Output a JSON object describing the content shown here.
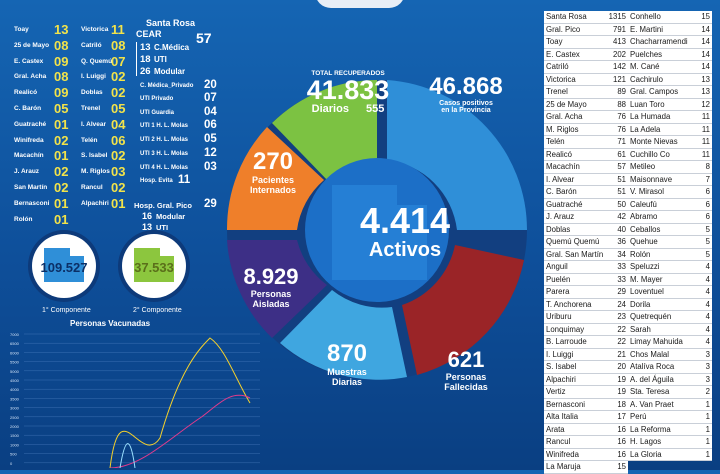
{
  "top_left_localities": [
    {
      "name": "Toay",
      "value": "13"
    },
    {
      "name": "25 de Mayo",
      "value": "08"
    },
    {
      "name": "E. Castex",
      "value": "09"
    },
    {
      "name": "Gral. Acha",
      "value": "08"
    },
    {
      "name": "Realicó",
      "value": "09"
    },
    {
      "name": "C. Barón",
      "value": "05"
    },
    {
      "name": "Guatraché",
      "value": "01"
    },
    {
      "name": "Winifreda",
      "value": "02"
    },
    {
      "name": "Macachín",
      "value": "01"
    },
    {
      "name": "J. Arauz",
      "value": "02"
    },
    {
      "name": "San Martín",
      "value": "02"
    },
    {
      "name": "Bernasconi",
      "value": "01"
    },
    {
      "name": "Rolón",
      "value": "01"
    }
  ],
  "mid_localities": [
    {
      "name": "Victorica",
      "value": "11"
    },
    {
      "name": "Catriló",
      "value": "08"
    },
    {
      "name": "Q. Quemú",
      "value": "07"
    },
    {
      "name": "I. Luiggi",
      "value": "02"
    },
    {
      "name": "Doblas",
      "value": "02"
    },
    {
      "name": "Trenel",
      "value": "05"
    },
    {
      "name": "I. Alvear",
      "value": "04"
    },
    {
      "name": "Telén",
      "value": "06"
    },
    {
      "name": "S. Isabel",
      "value": "02"
    },
    {
      "name": "M. Riglos",
      "value": "03"
    },
    {
      "name": "Rancul",
      "value": "02"
    },
    {
      "name": "Alpachiri",
      "value": "01"
    }
  ],
  "santa_rosa": {
    "title": "Santa Rosa",
    "cear_label": "CEAR",
    "cear_value": "57",
    "lines": [
      {
        "value": "13",
        "name": "C.Médica"
      },
      {
        "value": "18",
        "name": "UTI"
      },
      {
        "value": "26",
        "name": "Modular"
      }
    ],
    "privado_label": "C. Médica_Privado",
    "privado_value": "20",
    "uti_lines": [
      {
        "name": "UTI Privado",
        "value": "07"
      },
      {
        "name": "UTI Guardia",
        "value": "04"
      },
      {
        "name": "UTI 1 H. L. Molas",
        "value": "06"
      },
      {
        "name": "UTI 2 H. L. Molas",
        "value": "05"
      },
      {
        "name": "UTI 3 H. L. Molas",
        "value": "12"
      },
      {
        "name": "UTI 4 H. L. Molas",
        "value": "03"
      },
      {
        "name": "Hosp. Evita",
        "value": "11"
      }
    ],
    "pico_label": "Hosp. Gral. Pico",
    "pico_value": "29",
    "pico_lines": [
      {
        "value": "16",
        "name": "Modular"
      },
      {
        "value": "13",
        "name": "UTI"
      }
    ]
  },
  "components": [
    {
      "value": "109.527",
      "label": "1° Componente"
    },
    {
      "value": "37.533",
      "label": "2° Componente"
    }
  ],
  "vaccine_chart_title": "Personas Vacunadas",
  "vaccine_y_ticks": [
    "7000",
    "6500",
    "6000",
    "5500",
    "5000",
    "4500",
    "4000",
    "3500",
    "3000",
    "2500",
    "2000",
    "1500",
    "1000",
    "500",
    "0"
  ],
  "ring": {
    "recuperados_label": "TOTAL RECUPERADOS",
    "recuperados_value": "41.833",
    "diarios_label": "Diarios",
    "diarios_value": "555",
    "positivos_value": "46.868",
    "positivos_label_1": "Casos positivos",
    "positivos_label_2": "en la Provincia",
    "internados_value": "270",
    "internados_label_1": "Pacientes",
    "internados_label_2": "Internados",
    "aisladas_value": "8.929",
    "aisladas_label_1": "Personas",
    "aisladas_label_2": "Aisladas",
    "muestras_value": "870",
    "muestras_label_1": "Muestras",
    "muestras_label_2": "Diarias",
    "fallecidas_value": "621",
    "fallecidas_label_1": "Personas",
    "fallecidas_label_2": "Fallecidas",
    "activos_value": "4.414",
    "activos_label": "Activos"
  },
  "colors": {
    "green": "#7cc242",
    "blue_light": "#2f8fd8",
    "orange": "#ef7f2a",
    "purple": "#3d2f86",
    "cyan": "#3fa6e0",
    "red": "#9a2427",
    "center": "#1c6fc7"
  },
  "table_left": [
    {
      "name": "Santa Rosa",
      "value": "1315"
    },
    {
      "name": "Gral. Pico",
      "value": "791"
    },
    {
      "name": "Toay",
      "value": "413"
    },
    {
      "name": "E. Castex",
      "value": "202"
    },
    {
      "name": "Catriló",
      "value": "142"
    },
    {
      "name": "Victorica",
      "value": "121"
    },
    {
      "name": "Trenel",
      "value": "89"
    },
    {
      "name": "25 de Mayo",
      "value": "88"
    },
    {
      "name": "Gral. Acha",
      "value": "76"
    },
    {
      "name": "M. Riglos",
      "value": "76"
    },
    {
      "name": "Telén",
      "value": "71"
    },
    {
      "name": "Realicó",
      "value": "61"
    },
    {
      "name": "Macachín",
      "value": "57"
    },
    {
      "name": "I. Alvear",
      "value": "51"
    },
    {
      "name": "C. Barón",
      "value": "51"
    },
    {
      "name": "Guatraché",
      "value": "50"
    },
    {
      "name": "J. Arauz",
      "value": "42"
    },
    {
      "name": "Doblas",
      "value": "40"
    },
    {
      "name": "Quemú Quemú",
      "value": "36"
    },
    {
      "name": "Gral. San Martín",
      "value": "34"
    },
    {
      "name": "Anguil",
      "value": "33"
    },
    {
      "name": "Puelén",
      "value": "33"
    },
    {
      "name": "Parera",
      "value": "29"
    },
    {
      "name": "T. Anchorena",
      "value": "24"
    },
    {
      "name": "Uriburu",
      "value": "23"
    },
    {
      "name": "Lonquimay",
      "value": "22"
    },
    {
      "name": "B. Larroude",
      "value": "22"
    },
    {
      "name": "I. Luiggi",
      "value": "21"
    },
    {
      "name": "S. Isabel",
      "value": "20"
    },
    {
      "name": "Alpachiri",
      "value": "19"
    },
    {
      "name": "Vertiz",
      "value": "19"
    },
    {
      "name": "Bernasconi",
      "value": "18"
    },
    {
      "name": "Alta Italia",
      "value": "17"
    },
    {
      "name": "Arata",
      "value": "16"
    },
    {
      "name": "Rancul",
      "value": "16"
    },
    {
      "name": "Winifreda",
      "value": "16"
    },
    {
      "name": "La Maruja",
      "value": "15"
    }
  ],
  "table_right": [
    {
      "name": "Conhello",
      "value": "15"
    },
    {
      "name": "E. Martini",
      "value": "14"
    },
    {
      "name": "Chacharramendi",
      "value": "14"
    },
    {
      "name": "Puelches",
      "value": "14"
    },
    {
      "name": "M. Cané",
      "value": "14"
    },
    {
      "name": "Cachirulo",
      "value": "13"
    },
    {
      "name": "Gral. Campos",
      "value": "13"
    },
    {
      "name": "Luan Toro",
      "value": "12"
    },
    {
      "name": "La Humada",
      "value": "11"
    },
    {
      "name": "La Adela",
      "value": "11"
    },
    {
      "name": "Monte Nievas",
      "value": "11"
    },
    {
      "name": "Cuchillo Co",
      "value": "11"
    },
    {
      "name": "Metileo",
      "value": "8"
    },
    {
      "name": "Maisonnave",
      "value": "7"
    },
    {
      "name": "V. Mirasol",
      "value": "6"
    },
    {
      "name": "Caleufú",
      "value": "6"
    },
    {
      "name": "Abramo",
      "value": "6"
    },
    {
      "name": "Ceballos",
      "value": "5"
    },
    {
      "name": "Quehue",
      "value": "5"
    },
    {
      "name": "Rolón",
      "value": "5"
    },
    {
      "name": "Speluzzi",
      "value": "4"
    },
    {
      "name": "M. Mayer",
      "value": "4"
    },
    {
      "name": "Loventuel",
      "value": "4"
    },
    {
      "name": "Dorila",
      "value": "4"
    },
    {
      "name": "Quetrequén",
      "value": "4"
    },
    {
      "name": "Sarah",
      "value": "4"
    },
    {
      "name": "Limay Mahuida",
      "value": "4"
    },
    {
      "name": "Chos Malal",
      "value": "3"
    },
    {
      "name": "Atalíva Roca",
      "value": "3"
    },
    {
      "name": "A. del Águila",
      "value": "3"
    },
    {
      "name": "Sta. Teresa",
      "value": "2"
    },
    {
      "name": "A. Van Praet",
      "value": "1"
    },
    {
      "name": "Perú",
      "value": "1"
    },
    {
      "name": "La Reforma",
      "value": "1"
    },
    {
      "name": "H. Lagos",
      "value": "1"
    },
    {
      "name": "La Gloria",
      "value": "1"
    }
  ]
}
